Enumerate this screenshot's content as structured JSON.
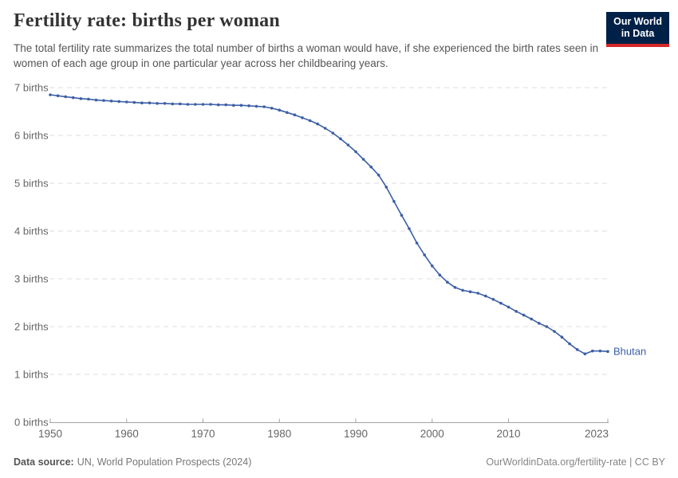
{
  "header": {
    "title": "Fertility rate: births per woman",
    "subtitle": "The total fertility rate summarizes the total number of births a woman would have, if she experienced the birth rates seen in women of each age group in one particular year across her childbearing years."
  },
  "logo": {
    "line1": "Our World",
    "line2": "in Data",
    "bg_color": "#002147",
    "bar_color": "#d62828"
  },
  "chart_data": {
    "type": "line",
    "title": "Fertility rate: births per woman",
    "entity_label": "Bhutan",
    "line_color": "#3c5fa6",
    "grid": "horizontal-dashed",
    "grid_color": "#dcdcdc",
    "axis_color": "#a3a3a3",
    "tick_label_color": "#666666",
    "marker": "circle",
    "xlabel": "",
    "ylabel": "births",
    "xlim": [
      1950,
      2023
    ],
    "ylim": [
      0,
      7
    ],
    "y_ticks": [
      {
        "value": 0,
        "label": "0 births"
      },
      {
        "value": 1,
        "label": "1 births"
      },
      {
        "value": 2,
        "label": "2 births"
      },
      {
        "value": 3,
        "label": "3 births"
      },
      {
        "value": 4,
        "label": "4 births"
      },
      {
        "value": 5,
        "label": "5 births"
      },
      {
        "value": 6,
        "label": "6 births"
      },
      {
        "value": 7,
        "label": "7 births"
      }
    ],
    "x_ticks": [
      {
        "value": 1950,
        "label": "1950"
      },
      {
        "value": 1960,
        "label": "1960"
      },
      {
        "value": 1970,
        "label": "1970"
      },
      {
        "value": 1980,
        "label": "1980"
      },
      {
        "value": 1990,
        "label": "1990"
      },
      {
        "value": 2000,
        "label": "2000"
      },
      {
        "value": 2010,
        "label": "2010"
      },
      {
        "value": 2023,
        "label": "2023"
      }
    ],
    "x": [
      1950,
      1951,
      1952,
      1953,
      1954,
      1955,
      1956,
      1957,
      1958,
      1959,
      1960,
      1961,
      1962,
      1963,
      1964,
      1965,
      1966,
      1967,
      1968,
      1969,
      1970,
      1971,
      1972,
      1973,
      1974,
      1975,
      1976,
      1977,
      1978,
      1979,
      1980,
      1981,
      1982,
      1983,
      1984,
      1985,
      1986,
      1987,
      1988,
      1989,
      1990,
      1991,
      1992,
      1993,
      1994,
      1995,
      1996,
      1997,
      1998,
      1999,
      2000,
      2001,
      2002,
      2003,
      2004,
      2005,
      2006,
      2007,
      2008,
      2009,
      2010,
      2011,
      2012,
      2013,
      2014,
      2015,
      2016,
      2017,
      2018,
      2019,
      2020,
      2021,
      2022,
      2023
    ],
    "values": [
      6.85,
      6.83,
      6.81,
      6.79,
      6.77,
      6.76,
      6.74,
      6.73,
      6.72,
      6.71,
      6.7,
      6.69,
      6.68,
      6.68,
      6.67,
      6.67,
      6.66,
      6.66,
      6.65,
      6.65,
      6.65,
      6.65,
      6.64,
      6.64,
      6.63,
      6.63,
      6.62,
      6.61,
      6.6,
      6.57,
      6.53,
      6.48,
      6.43,
      6.37,
      6.31,
      6.24,
      6.15,
      6.05,
      5.93,
      5.8,
      5.66,
      5.5,
      5.34,
      5.17,
      4.92,
      4.62,
      4.33,
      4.05,
      3.75,
      3.5,
      3.27,
      3.08,
      2.93,
      2.82,
      2.76,
      2.73,
      2.7,
      2.64,
      2.57,
      2.49,
      2.41,
      2.32,
      2.24,
      2.16,
      2.07,
      2.0,
      1.9,
      1.78,
      1.64,
      1.52,
      1.43,
      1.49,
      1.49,
      1.48
    ]
  },
  "footer": {
    "source_label": "Data source:",
    "source_value": "UN, World Population Prospects (2024)",
    "credit": "OurWorldinData.org/fertility-rate | CC BY"
  }
}
